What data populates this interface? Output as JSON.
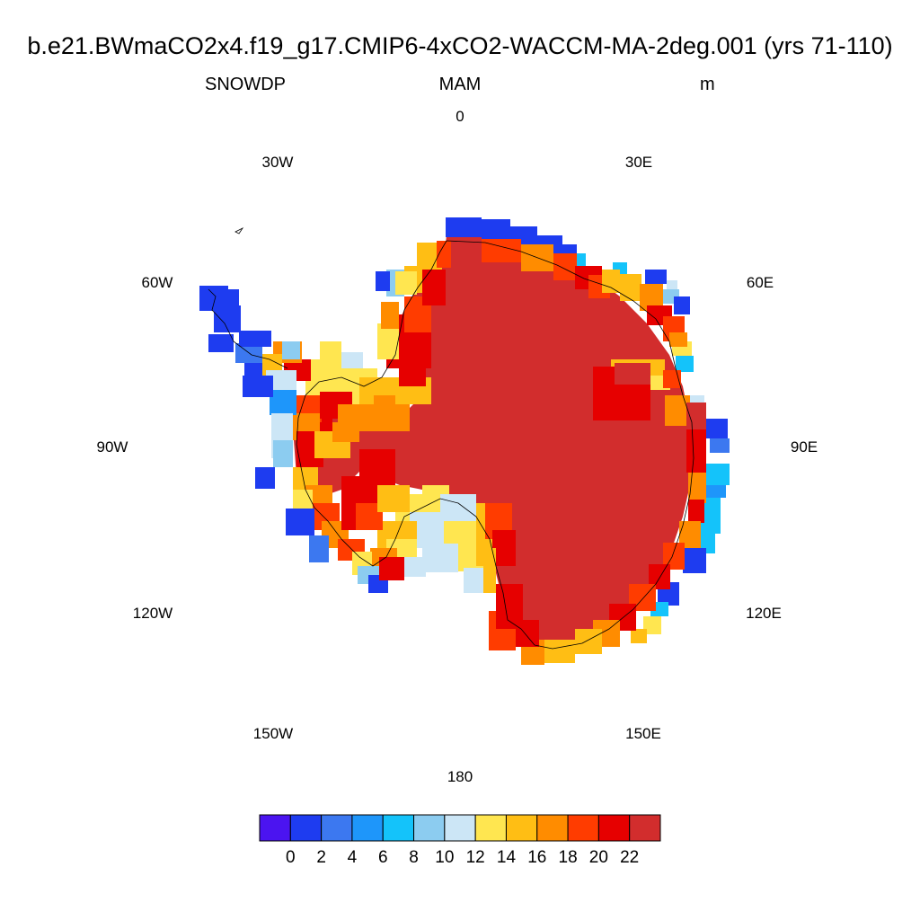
{
  "header": {
    "title": "b.e21.BWmaCO2x4.f19_g17.CMIP6-4xCO2-WACCM-MA-2deg.001 (yrs 71-110)",
    "variable": "SNOWDP",
    "season": "MAM",
    "units": "m"
  },
  "lon_labels": [
    "0",
    "30E",
    "60E",
    "90E",
    "120E",
    "150E",
    "180",
    "150W",
    "120W",
    "90W",
    "60W",
    "30W"
  ],
  "colorbar": {
    "colors": [
      "#4b14f0",
      "#1e3cf0",
      "#3c78f0",
      "#1e96fa",
      "#14c3fa",
      "#8cccf0",
      "#cce6f6",
      "#ffe650",
      "#ffbe14",
      "#ff8c00",
      "#ff3c00",
      "#e60000",
      "#d22d2d"
    ],
    "tick_labels": [
      "0",
      "2",
      "4",
      "6",
      "8",
      "10",
      "12",
      "14",
      "16",
      "18",
      "20",
      "22"
    ]
  }
}
